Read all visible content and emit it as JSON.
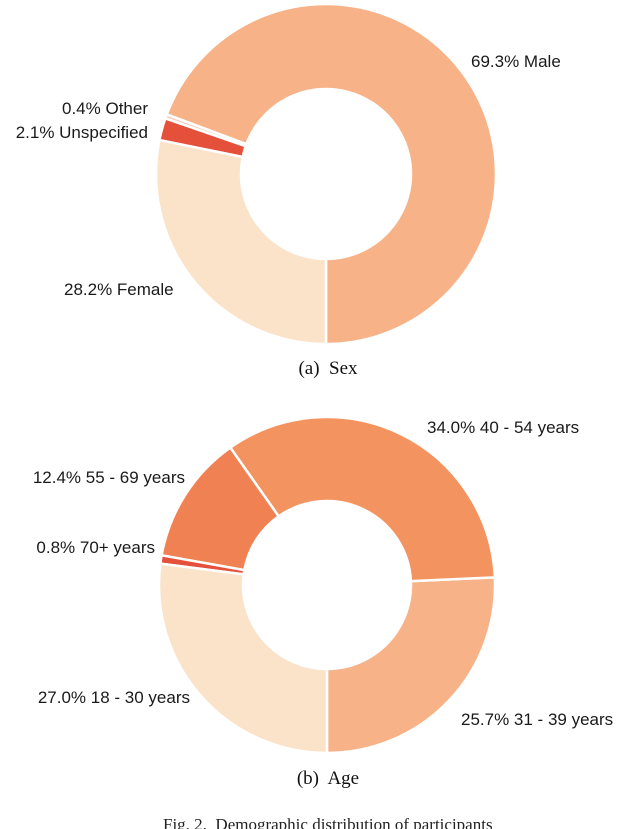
{
  "figure_caption": {
    "text": "Fig. 2.  Demographic distribution of participants"
  },
  "chart_data": [
    {
      "type": "pie",
      "subtype": "donut",
      "title": "(a)  Sex",
      "start_angle_deg": 270,
      "direction": "counterclockwise",
      "donut_hole_ratio": 0.5,
      "gap_color": "#ffffff",
      "slices": [
        {
          "label": "Male",
          "pct": 69.3,
          "text": "69.3% Male",
          "color": "#f7b287"
        },
        {
          "label": "Other",
          "pct": 0.4,
          "text": "0.4% Other",
          "color": "#f7cdba"
        },
        {
          "label": "Unspecified",
          "pct": 2.1,
          "text": "2.1% Unspecified",
          "color": "#e5503b"
        },
        {
          "label": "Female",
          "pct": 28.2,
          "text": "28.2% Female",
          "color": "#fbe3ca"
        }
      ]
    },
    {
      "type": "pie",
      "subtype": "donut",
      "title": "(b)  Age",
      "start_angle_deg": 270,
      "direction": "counterclockwise",
      "donut_hole_ratio": 0.5,
      "gap_color": "#ffffff",
      "slices": [
        {
          "label": "31 - 39 years",
          "pct": 25.7,
          "text": "25.7% 31 - 39 years",
          "color": "#f7b287"
        },
        {
          "label": "40 - 54 years",
          "pct": 34.0,
          "text": "34.0% 40 - 54 years",
          "color": "#f3935f"
        },
        {
          "label": "55 - 69 years",
          "pct": 12.4,
          "text": "12.4% 55 - 69 years",
          "color": "#ef8152"
        },
        {
          "label": "70+ years",
          "pct": 0.8,
          "text": "0.8% 70+ years",
          "color": "#e5503b"
        },
        {
          "label": "18 - 30 years",
          "pct": 27.0,
          "text": "27.0% 18 - 30 years",
          "color": "#fbe3ca"
        }
      ]
    }
  ]
}
